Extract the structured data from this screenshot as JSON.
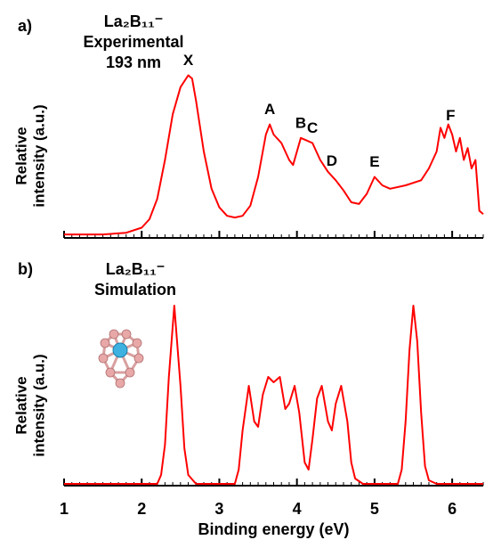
{
  "chart_data": [
    {
      "type": "line",
      "panel_label": "a)",
      "title_lines": [
        "La₂B₁₁⁻",
        "Experimental",
        "193 nm"
      ],
      "ylabel": [
        "Relative",
        "intensity (a.u.)"
      ],
      "color": "#ff0000",
      "xlim": [
        1,
        6.4
      ],
      "xticks": [
        1,
        2,
        3,
        4,
        5,
        6
      ],
      "show_xtick_labels": false,
      "ylim": [
        0,
        1
      ],
      "x": [
        1.0,
        1.5,
        1.8,
        2.0,
        2.1,
        2.2,
        2.3,
        2.4,
        2.5,
        2.6,
        2.65,
        2.7,
        2.8,
        2.9,
        3.0,
        3.1,
        3.2,
        3.3,
        3.4,
        3.5,
        3.6,
        3.65,
        3.7,
        3.8,
        3.9,
        3.95,
        4.0,
        4.05,
        4.1,
        4.2,
        4.3,
        4.4,
        4.5,
        4.6,
        4.7,
        4.8,
        4.9,
        5.0,
        5.1,
        5.2,
        5.4,
        5.6,
        5.7,
        5.8,
        5.85,
        5.9,
        5.95,
        6.0,
        6.05,
        6.1,
        6.15,
        6.2,
        6.25,
        6.3,
        6.35,
        6.4
      ],
      "values": [
        0.01,
        0.01,
        0.02,
        0.05,
        0.1,
        0.22,
        0.45,
        0.72,
        0.88,
        0.95,
        0.93,
        0.8,
        0.5,
        0.28,
        0.17,
        0.12,
        0.11,
        0.12,
        0.18,
        0.35,
        0.6,
        0.66,
        0.6,
        0.55,
        0.45,
        0.42,
        0.5,
        0.58,
        0.57,
        0.55,
        0.45,
        0.38,
        0.33,
        0.27,
        0.2,
        0.19,
        0.25,
        0.35,
        0.3,
        0.28,
        0.3,
        0.33,
        0.4,
        0.5,
        0.64,
        0.58,
        0.66,
        0.6,
        0.5,
        0.58,
        0.45,
        0.52,
        0.4,
        0.45,
        0.15,
        0.13
      ],
      "annotations": [
        {
          "text": "X",
          "x": 2.6
        },
        {
          "text": "A",
          "x": 3.65
        },
        {
          "text": "B",
          "x": 4.05
        },
        {
          "text": "C",
          "x": 4.2
        },
        {
          "text": "D",
          "x": 4.45
        },
        {
          "text": "E",
          "x": 5.0
        },
        {
          "text": "F",
          "x": 5.98
        }
      ]
    },
    {
      "type": "line",
      "panel_label": "b)",
      "title_lines": [
        "La₂B₁₁⁻",
        "Simulation"
      ],
      "ylabel": [
        "Relative",
        "intensity (a.u.)"
      ],
      "xlabel": "Binding energy (eV)",
      "color": "#ff0000",
      "xlim": [
        1,
        6.4
      ],
      "xticks": [
        1,
        2,
        3,
        4,
        5,
        6
      ],
      "show_xtick_labels": true,
      "ylim": [
        0,
        1
      ],
      "x": [
        1.0,
        2.2,
        2.25,
        2.3,
        2.35,
        2.42,
        2.5,
        2.55,
        2.6,
        2.7,
        3.2,
        3.25,
        3.3,
        3.38,
        3.45,
        3.5,
        3.56,
        3.63,
        3.7,
        3.78,
        3.85,
        3.9,
        3.97,
        4.03,
        4.1,
        4.15,
        4.2,
        4.26,
        4.32,
        4.4,
        4.45,
        4.5,
        4.57,
        4.65,
        4.7,
        4.75,
        4.85,
        5.3,
        5.35,
        5.4,
        5.45,
        5.5,
        5.55,
        5.6,
        5.65,
        5.7,
        5.8,
        6.4
      ],
      "values": [
        0,
        0,
        0.05,
        0.22,
        0.6,
        1.0,
        0.55,
        0.2,
        0.05,
        0,
        0,
        0.08,
        0.3,
        0.55,
        0.35,
        0.32,
        0.5,
        0.6,
        0.57,
        0.6,
        0.42,
        0.45,
        0.55,
        0.4,
        0.12,
        0.08,
        0.25,
        0.48,
        0.55,
        0.35,
        0.3,
        0.45,
        0.55,
        0.35,
        0.12,
        0.03,
        0,
        0,
        0.08,
        0.35,
        0.75,
        1.0,
        0.8,
        0.4,
        0.1,
        0.02,
        0,
        0
      ]
    }
  ]
}
